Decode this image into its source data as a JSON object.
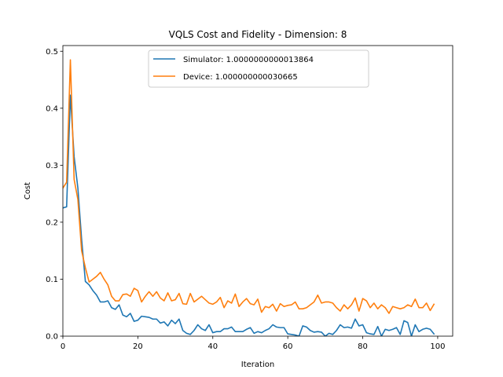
{
  "chart_data": {
    "type": "line",
    "title": "VQLS Cost and Fidelity - Dimension: 8",
    "xlabel": "Iteration",
    "ylabel": "Cost",
    "xlim": [
      0,
      104
    ],
    "ylim": [
      0,
      0.51
    ],
    "xticks": [
      0,
      20,
      40,
      60,
      80,
      100
    ],
    "yticks": [
      0.0,
      0.1,
      0.2,
      0.3,
      0.4,
      0.5
    ],
    "xtick_labels": [
      "0",
      "20",
      "40",
      "60",
      "80",
      "100"
    ],
    "ytick_labels": [
      "0.0",
      "0.1",
      "0.2",
      "0.3",
      "0.4",
      "0.5"
    ],
    "grid": false,
    "legend_position": "upper-center",
    "series": [
      {
        "name": "Simulator: 1.0000000000013864",
        "color": "#1f77b4",
        "x": [
          0,
          1,
          2,
          3,
          4,
          5,
          6,
          7,
          8,
          9,
          10,
          11,
          12,
          13,
          14,
          15,
          16,
          17,
          18,
          19,
          20,
          21,
          22,
          23,
          24,
          25,
          26,
          27,
          28,
          29,
          30,
          31,
          32,
          33,
          34,
          35,
          36,
          37,
          38,
          39,
          40,
          41,
          42,
          43,
          44,
          45,
          46,
          47,
          48,
          49,
          50,
          51,
          52,
          53,
          54,
          55,
          56,
          57,
          58,
          59,
          60,
          61,
          62,
          63,
          64,
          65,
          66,
          67,
          68,
          69,
          70,
          71,
          72,
          73,
          74,
          75,
          76,
          77,
          78,
          79,
          80,
          81,
          82,
          83,
          84,
          85,
          86,
          87,
          88,
          89,
          90,
          91,
          92,
          93,
          94,
          95,
          96,
          97,
          98,
          99
        ],
        "values": [
          0.225,
          0.227,
          0.423,
          0.315,
          0.26,
          0.17,
          0.096,
          0.09,
          0.08,
          0.072,
          0.06,
          0.06,
          0.062,
          0.05,
          0.047,
          0.055,
          0.037,
          0.034,
          0.04,
          0.026,
          0.028,
          0.035,
          0.034,
          0.033,
          0.03,
          0.03,
          0.023,
          0.025,
          0.018,
          0.028,
          0.022,
          0.03,
          0.01,
          0.005,
          0.003,
          0.01,
          0.02,
          0.013,
          0.01,
          0.02,
          0.006,
          0.008,
          0.008,
          0.013,
          0.013,
          0.016,
          0.008,
          0.008,
          0.008,
          0.012,
          0.015,
          0.005,
          0.008,
          0.006,
          0.01,
          0.013,
          0.02,
          0.016,
          0.015,
          0.015,
          0.004,
          0.003,
          0.002,
          0.0,
          0.018,
          0.016,
          0.01,
          0.007,
          0.008,
          0.007,
          0.0,
          0.005,
          0.003,
          0.01,
          0.02,
          0.015,
          0.016,
          0.014,
          0.03,
          0.018,
          0.02,
          0.006,
          0.004,
          0.003,
          0.017,
          0.0,
          0.012,
          0.01,
          0.012,
          0.015,
          0.003,
          0.027,
          0.024,
          0.0,
          0.02,
          0.008,
          0.012,
          0.014,
          0.012,
          0.004
        ]
      },
      {
        "name": "Device: 1.000000000030665",
        "color": "#ff7f0e",
        "x": [
          0,
          1,
          2,
          3,
          4,
          5,
          6,
          7,
          8,
          9,
          10,
          11,
          12,
          13,
          14,
          15,
          16,
          17,
          18,
          19,
          20,
          21,
          22,
          23,
          24,
          25,
          26,
          27,
          28,
          29,
          30,
          31,
          32,
          33,
          34,
          35,
          36,
          37,
          38,
          39,
          40,
          41,
          42,
          43,
          44,
          45,
          46,
          47,
          48,
          49,
          50,
          51,
          52,
          53,
          54,
          55,
          56,
          57,
          58,
          59,
          60,
          61,
          62,
          63,
          64,
          65,
          66,
          67,
          68,
          69,
          70,
          71,
          72,
          73,
          74,
          75,
          76,
          77,
          78,
          79,
          80,
          81,
          82,
          83,
          84,
          85,
          86,
          87,
          88,
          89,
          90,
          91,
          92,
          93,
          94,
          95,
          96,
          97,
          98,
          99
        ],
        "values": [
          0.26,
          0.27,
          0.485,
          0.275,
          0.24,
          0.15,
          0.12,
          0.095,
          0.1,
          0.105,
          0.112,
          0.1,
          0.09,
          0.07,
          0.062,
          0.062,
          0.073,
          0.074,
          0.07,
          0.084,
          0.08,
          0.06,
          0.07,
          0.078,
          0.07,
          0.078,
          0.067,
          0.062,
          0.076,
          0.062,
          0.064,
          0.075,
          0.057,
          0.056,
          0.075,
          0.06,
          0.065,
          0.07,
          0.064,
          0.058,
          0.056,
          0.06,
          0.068,
          0.05,
          0.062,
          0.058,
          0.074,
          0.052,
          0.06,
          0.066,
          0.057,
          0.055,
          0.065,
          0.042,
          0.052,
          0.05,
          0.056,
          0.044,
          0.057,
          0.052,
          0.054,
          0.055,
          0.06,
          0.048,
          0.048,
          0.05,
          0.055,
          0.06,
          0.072,
          0.058,
          0.06,
          0.06,
          0.058,
          0.05,
          0.044,
          0.055,
          0.048,
          0.055,
          0.067,
          0.044,
          0.066,
          0.062,
          0.05,
          0.058,
          0.048,
          0.055,
          0.05,
          0.04,
          0.052,
          0.05,
          0.048,
          0.05,
          0.055,
          0.052,
          0.065,
          0.05,
          0.05,
          0.058,
          0.045,
          0.056
        ]
      }
    ]
  }
}
